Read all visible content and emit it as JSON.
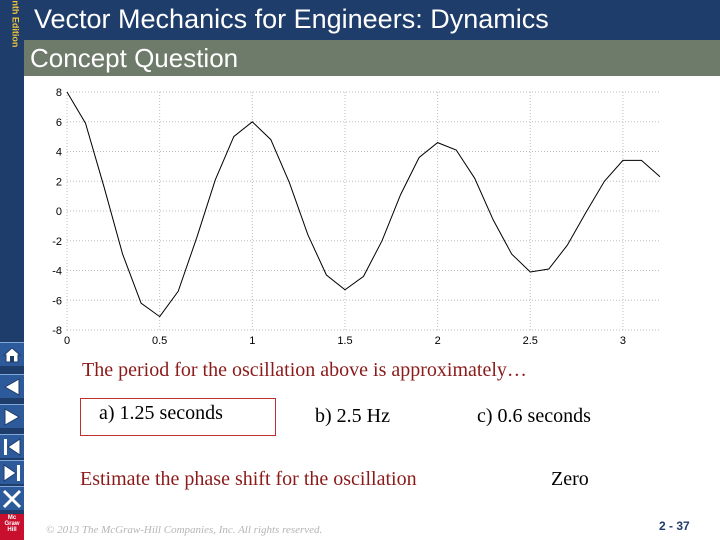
{
  "header": {
    "edition": "Tenth Edition",
    "title": "Vector Mechanics for Engineers: Dynamics",
    "subtitle": "Concept Question"
  },
  "chart_data": {
    "type": "line",
    "xlim": [
      0,
      3.2
    ],
    "ylim": [
      -8,
      8
    ],
    "x_ticks": [
      "0",
      "0.5",
      "1",
      "1.5",
      "2",
      "2.5",
      "3"
    ],
    "y_ticks": [
      "8",
      "6",
      "4",
      "2",
      "0",
      "-2",
      "-4",
      "-6",
      "-8"
    ],
    "grid": true,
    "series": [
      {
        "x": [
          0,
          0.1,
          0.2,
          0.3,
          0.4,
          0.5,
          0.6,
          0.7,
          0.8,
          0.9,
          1.0,
          1.1,
          1.2,
          1.3,
          1.4,
          1.5,
          1.6,
          1.7,
          1.8,
          1.9,
          2.0,
          2.1,
          2.2,
          2.3,
          2.4,
          2.5,
          2.6,
          2.7,
          2.8,
          2.9,
          3.0,
          3.1,
          3.2
        ],
        "y": [
          8.0,
          5.9,
          1.6,
          -2.9,
          -6.2,
          -7.1,
          -5.4,
          -1.8,
          2.1,
          5.0,
          6.0,
          4.8,
          1.9,
          -1.6,
          -4.3,
          -5.3,
          -4.4,
          -2.0,
          1.1,
          3.6,
          4.6,
          4.1,
          2.2,
          -0.6,
          -2.9,
          -4.1,
          -3.9,
          -2.3,
          -0.1,
          2.0,
          3.4,
          3.4,
          2.3
        ]
      }
    ]
  },
  "question": {
    "text": "The period for the oscillation above is approximately…",
    "options": [
      "a) 1.25 seconds",
      "b) 2.5 Hz",
      "c) 0.6 seconds"
    ],
    "selected_index": 0
  },
  "phase_question": {
    "text": "Estimate the phase shift for the oscillation",
    "answer": "Zero"
  },
  "footer": {
    "copyright": "© 2013 The McGraw-Hill Companies, Inc. All rights reserved.",
    "page": "2 - 37",
    "logo_text": "Mc Graw Hill"
  },
  "colors": {
    "header_bg": "#1f3d6b",
    "subheader_bg": "#6e7a6a",
    "question_text": "#8b1a1a",
    "answer_border": "#c0302e"
  },
  "nav_icons": [
    "home-icon",
    "previous-icon",
    "next-icon",
    "first-icon",
    "last-icon",
    "exit-icon"
  ]
}
